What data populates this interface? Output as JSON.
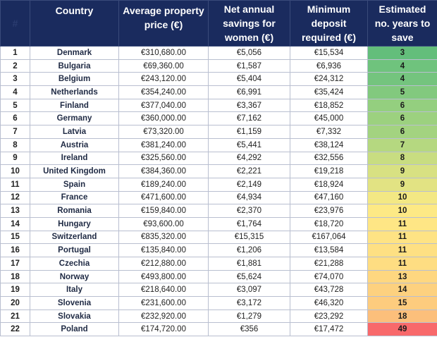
{
  "header": {
    "col0": "#",
    "col1": "Country",
    "col2_line1": "Average property",
    "col2_line2": "price (€)",
    "col3_line1": "Net annual",
    "col3_line2": "savings for",
    "col3_line3": "women (€)",
    "col4_line1": "Minimum",
    "col4_line2": "deposit",
    "col4_line3": "required (€)",
    "col5_line1": "Estimated",
    "col5_line2": "no. years to",
    "col5_line3": "save"
  },
  "rows": [
    {
      "rank": "1",
      "country": "Denmark",
      "price": "€310,680.00",
      "savings": "€5,056",
      "deposit": "€15,534",
      "years": "3",
      "color": "#63be7b"
    },
    {
      "rank": "2",
      "country": "Bulgaria",
      "price": "€69,360.00",
      "savings": "€1,587",
      "deposit": "€6,936",
      "years": "4",
      "color": "#6fc37d"
    },
    {
      "rank": "3",
      "country": "Belgium",
      "price": "€243,120.00",
      "savings": "€5,404",
      "deposit": "€24,312",
      "years": "4",
      "color": "#74c47e"
    },
    {
      "rank": "4",
      "country": "Netherlands",
      "price": "€354,240.00",
      "savings": "€6,991",
      "deposit": "€35,424",
      "years": "5",
      "color": "#82c97e"
    },
    {
      "rank": "5",
      "country": "Finland",
      "price": "€377,040.00",
      "savings": "€3,367",
      "deposit": "€18,852",
      "years": "6",
      "color": "#94cf7f"
    },
    {
      "rank": "6",
      "country": "Germany",
      "price": "€360,000.00",
      "savings": "€7,162",
      "deposit": "€45,000",
      "years": "6",
      "color": "#9cd17f"
    },
    {
      "rank": "7",
      "country": "Latvia",
      "price": "€73,320.00",
      "savings": "€1,159",
      "deposit": "€7,332",
      "years": "6",
      "color": "#a3d380"
    },
    {
      "rank": "8",
      "country": "Austria",
      "price": "€381,240.00",
      "savings": "€5,441",
      "deposit": "€38,124",
      "years": "7",
      "color": "#b5d880"
    },
    {
      "rank": "9",
      "country": "Ireland",
      "price": "€325,560.00",
      "savings": "€4,292",
      "deposit": "€32,556",
      "years": "8",
      "color": "#c8dd81"
    },
    {
      "rank": "10",
      "country": "United Kingdom",
      "price": "€384,360.00",
      "savings": "€2,221",
      "deposit": "€19,218",
      "years": "9",
      "color": "#d8e182"
    },
    {
      "rank": "11",
      "country": "Spain",
      "price": "€189,240.00",
      "savings": "€2,149",
      "deposit": "€18,924",
      "years": "9",
      "color": "#e2e383"
    },
    {
      "rank": "12",
      "country": "France",
      "price": "€471,600.00",
      "savings": "€4,934",
      "deposit": "€47,160",
      "years": "10",
      "color": "#f3e884"
    },
    {
      "rank": "13",
      "country": "Romania",
      "price": "€159,840.00",
      "savings": "€2,370",
      "deposit": "€23,976",
      "years": "10",
      "color": "#fde985"
    },
    {
      "rank": "14",
      "country": "Hungary",
      "price": "€93,600.00",
      "savings": "€1,764",
      "deposit": "€18,720",
      "years": "11",
      "color": "#fee685"
    },
    {
      "rank": "15",
      "country": "Switzerland",
      "price": "€835,320.00",
      "savings": "€15,315",
      "deposit": "€167,064",
      "years": "11",
      "color": "#fee384"
    },
    {
      "rank": "16",
      "country": "Portugal",
      "price": "€135,840.00",
      "savings": "€1,206",
      "deposit": "€13,584",
      "years": "11",
      "color": "#fee083"
    },
    {
      "rank": "17",
      "country": "Czechia",
      "price": "€212,880.00",
      "savings": "€1,881",
      "deposit": "€21,288",
      "years": "11",
      "color": "#fedd82"
    },
    {
      "rank": "18",
      "country": "Norway",
      "price": "€493,800.00",
      "savings": "€5,624",
      "deposit": "€74,070",
      "years": "13",
      "color": "#fed780"
    },
    {
      "rank": "19",
      "country": "Italy",
      "price": "€218,640.00",
      "savings": "€3,097",
      "deposit": "€43,728",
      "years": "14",
      "color": "#fdd17f"
    },
    {
      "rank": "20",
      "country": "Slovenia",
      "price": "€231,600.00",
      "savings": "€3,172",
      "deposit": "€46,320",
      "years": "15",
      "color": "#fdcc7e"
    },
    {
      "rank": "21",
      "country": "Slovakia",
      "price": "€232,920.00",
      "savings": "€1,279",
      "deposit": "€23,292",
      "years": "18",
      "color": "#fcbf7b"
    },
    {
      "rank": "22",
      "country": "Poland",
      "price": "€174,720.00",
      "savings": "€356",
      "deposit": "€17,472",
      "years": "49",
      "color": "#f8696b"
    }
  ]
}
